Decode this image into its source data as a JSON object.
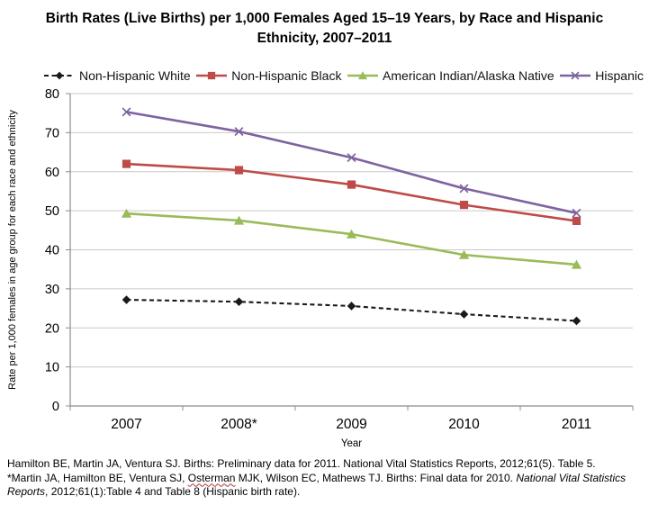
{
  "title": {
    "line1": "Birth Rates (Live Births) per 1,000 Females Aged 15–19 Years, by Race and Hispanic",
    "line2": "Ethnicity, 2007–2011"
  },
  "chart_data": {
    "type": "line",
    "title": "Birth Rates (Live Births) per 1,000 Females Aged 15–19 Years, by Race and Hispanic Ethnicity, 2007–2011",
    "categories": [
      "2007",
      "2008*",
      "2009",
      "2010",
      "2011"
    ],
    "xlabel": "Year",
    "ylabel": "Rate per 1,000 females in age group for each race and ethnicity",
    "ylim": [
      0,
      80
    ],
    "ytick_interval": 10,
    "grid": true,
    "legend_position": "top",
    "series": [
      {
        "name": "Non-Hispanic White",
        "values": [
          27.2,
          26.7,
          25.6,
          23.5,
          21.8
        ],
        "color": "#1a1a1a",
        "marker": "diamond",
        "line_style": "dashed"
      },
      {
        "name": "Non-Hispanic Black",
        "values": [
          62.0,
          60.4,
          56.7,
          51.5,
          47.4
        ],
        "color": "#be4b48",
        "marker": "square",
        "line_style": "solid"
      },
      {
        "name": "American Indian/Alaska Native",
        "values": [
          49.3,
          47.5,
          44.0,
          38.7,
          36.2
        ],
        "color": "#9abb59",
        "marker": "triangle",
        "line_style": "solid"
      },
      {
        "name": "Hispanic",
        "values": [
          75.3,
          70.3,
          63.6,
          55.7,
          49.4
        ],
        "color": "#7f63a1",
        "marker": "x",
        "line_style": "solid"
      }
    ]
  },
  "footnotes": {
    "line1": "Hamilton BE, Martin JA, Ventura SJ. Births: Preliminary data for 2011. National Vital Statistics Reports, 2012;61(5). Table 5.",
    "line2_prefix": "*Martin JA, Hamilton BE, Ventura SJ, ",
    "line2_underlined_word": "Osterman",
    "line2_middle": " MJK, Wilson EC, Mathews TJ. Births: Final data for 2010. ",
    "line2_italic": "National Vital Statistics",
    "line3_italic": "Reports",
    "line3_rest": ", 2012;61(1):Table 4 and Table 8 (Hispanic birth rate)."
  }
}
